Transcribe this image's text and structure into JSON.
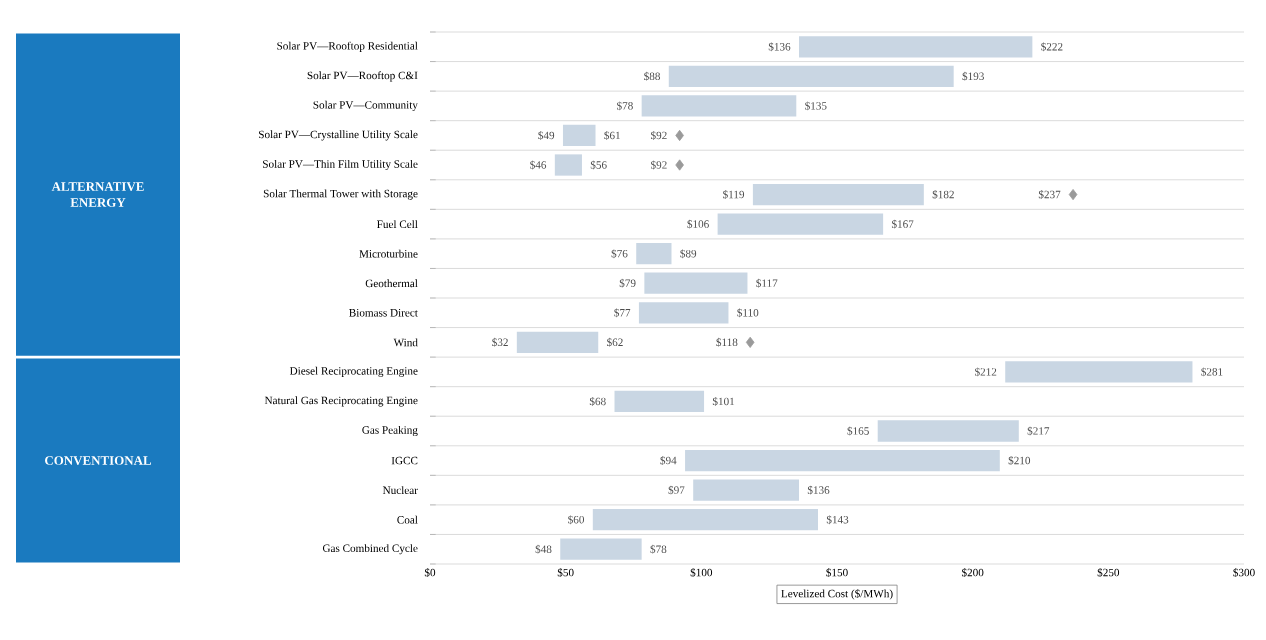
{
  "chart_data": {
    "type": "bar",
    "orientation": "horizontal",
    "xlabel": "Levelized Cost ($/MWh)",
    "categories": [
      "Solar PV—Rooftop Residential",
      "Solar PV—Rooftop C&I",
      "Solar PV—Community",
      "Solar PV—Crystalline Utility Scale",
      "Solar PV—Thin Film Utility Scale",
      "Solar Thermal Tower with Storage",
      "Fuel Cell",
      "Microturbine",
      "Geothermal",
      "Biomass Direct",
      "Wind",
      "Diesel Reciprocating Engine",
      "Natural Gas Reciprocating Engine",
      "Gas Peaking",
      "IGCC",
      "Nuclear",
      "Coal",
      "Gas Combined Cycle"
    ],
    "series": [
      {
        "type": "bar",
        "color": "#c9d6e3",
        "base": [
          136,
          88,
          78,
          49,
          46,
          119,
          106,
          76,
          79,
          77,
          32,
          212,
          68,
          165,
          94,
          97,
          60,
          48
        ],
        "values": [
          86,
          105,
          57,
          12,
          10,
          63,
          61,
          13,
          38,
          33,
          30,
          69,
          33,
          52,
          116,
          39,
          83,
          30
        ]
      },
      {
        "type": "scatter",
        "color": "#9a9a9a",
        "marker": "diamond",
        "values": [
          null,
          null,
          null,
          92,
          92,
          237,
          null,
          null,
          null,
          null,
          118,
          null,
          null,
          null,
          null,
          null,
          null,
          null
        ]
      }
    ],
    "xlim": [
      0,
      300
    ],
    "xticks": [
      {
        "value": 0,
        "label": "$0"
      },
      {
        "value": 50,
        "label": "$50"
      },
      {
        "value": 100,
        "label": "$100"
      },
      {
        "value": 150,
        "label": "$150"
      },
      {
        "value": 200,
        "label": "$200"
      },
      {
        "value": 250,
        "label": "$250"
      },
      {
        "value": 300,
        "label": "$300"
      }
    ],
    "grid": "y",
    "annotations": [
      "ALTERNATIVE ENERGY",
      "CONVENTIONAL",
      {
        "text": "$136",
        "x": 136,
        "y": "Solar PV—Rooftop Residential"
      },
      {
        "text": "$222",
        "x": 222,
        "y": "Solar PV—Rooftop Residential"
      },
      {
        "text": "$88",
        "x": 88,
        "y": "Solar PV—Rooftop C&I"
      },
      {
        "text": "$193",
        "x": 193,
        "y": "Solar PV—Rooftop C&I"
      },
      {
        "text": "$78",
        "x": 78,
        "y": "Solar PV—Community"
      },
      {
        "text": "$135",
        "x": 135,
        "y": "Solar PV—Community"
      },
      {
        "text": "$49",
        "x": 49,
        "y": "Solar PV—Crystalline Utility Scale"
      },
      {
        "text": "$61",
        "x": 61,
        "y": "Solar PV—Crystalline Utility Scale"
      },
      {
        "text": "$92",
        "x": 92,
        "y": "Solar PV—Crystalline Utility Scale"
      },
      {
        "text": "$46",
        "x": 46,
        "y": "Solar PV—Thin Film Utility Scale"
      },
      {
        "text": "$56",
        "x": 56,
        "y": "Solar PV—Thin Film Utility Scale"
      },
      {
        "text": "$92",
        "x": 92,
        "y": "Solar PV—Thin Film Utility Scale"
      },
      {
        "text": "$119",
        "x": 119,
        "y": "Solar Thermal Tower with Storage"
      },
      {
        "text": "$182",
        "x": 182,
        "y": "Solar Thermal Tower with Storage"
      },
      {
        "text": "$237",
        "x": 237,
        "y": "Solar Thermal Tower with Storage"
      },
      {
        "text": "$106",
        "x": 106,
        "y": "Fuel Cell"
      },
      {
        "text": "$167",
        "x": 167,
        "y": "Fuel Cell"
      },
      {
        "text": "$76",
        "x": 76,
        "y": "Microturbine"
      },
      {
        "text": "$89",
        "x": 89,
        "y": "Microturbine"
      },
      {
        "text": "$79",
        "x": 79,
        "y": "Geothermal"
      },
      {
        "text": "$117",
        "x": 117,
        "y": "Geothermal"
      },
      {
        "text": "$77",
        "x": 77,
        "y": "Biomass Direct"
      },
      {
        "text": "$110",
        "x": 110,
        "y": "Biomass Direct"
      },
      {
        "text": "$32",
        "x": 32,
        "y": "Wind"
      },
      {
        "text": "$62",
        "x": 62,
        "y": "Wind"
      },
      {
        "text": "$118",
        "x": 118,
        "y": "Wind"
      },
      {
        "text": "$212",
        "x": 212,
        "y": "Diesel Reciprocating Engine"
      },
      {
        "text": "$281",
        "x": 281,
        "y": "Diesel Reciprocating Engine"
      },
      {
        "text": "$68",
        "x": 68,
        "y": "Natural Gas Reciprocating Engine"
      },
      {
        "text": "$101",
        "x": 101,
        "y": "Natural Gas Reciprocating Engine"
      },
      {
        "text": "$165",
        "x": 165,
        "y": "Gas Peaking"
      },
      {
        "text": "$217",
        "x": 217,
        "y": "Gas Peaking"
      },
      {
        "text": "$94",
        "x": 94,
        "y": "IGCC"
      },
      {
        "text": "$210",
        "x": 210,
        "y": "IGCC"
      },
      {
        "text": "$97",
        "x": 97,
        "y": "Nuclear"
      },
      {
        "text": "$136",
        "x": 136,
        "y": "Nuclear"
      },
      {
        "text": "$60",
        "x": 60,
        "y": "Coal"
      },
      {
        "text": "$143",
        "x": 143,
        "y": "Coal"
      },
      {
        "text": "$48",
        "x": 48,
        "y": "Gas Combined Cycle"
      },
      {
        "text": "$78",
        "x": 78,
        "y": "Gas Combined Cycle"
      }
    ]
  }
}
